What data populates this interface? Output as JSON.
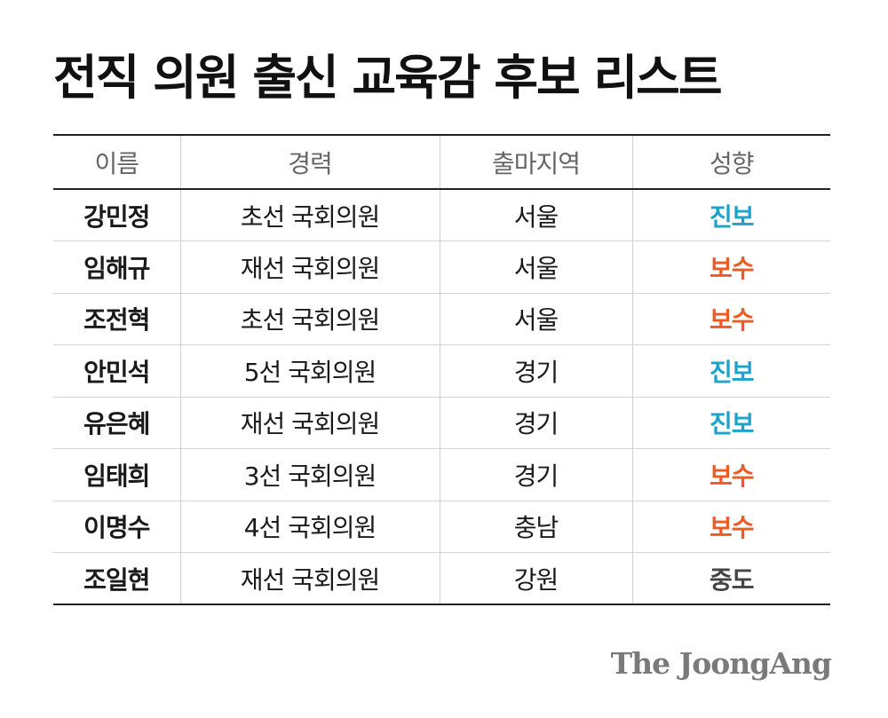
{
  "title": "전직 의원 출신 교육감 후보 리스트",
  "table": {
    "headers": [
      "이름",
      "경력",
      "출마지역",
      "성향"
    ],
    "rows": [
      {
        "name": "강민정",
        "career": "초선 국회의원",
        "region": "서울",
        "tendency": "진보"
      },
      {
        "name": "임해규",
        "career": "재선 국회의원",
        "region": "서울",
        "tendency": "보수"
      },
      {
        "name": "조전혁",
        "career": "초선 국회의원",
        "region": "서울",
        "tendency": "보수"
      },
      {
        "name": "안민석",
        "career": "5선 국회의원",
        "region": "경기",
        "tendency": "진보"
      },
      {
        "name": "유은혜",
        "career": "재선 국회의원",
        "region": "경기",
        "tendency": "진보"
      },
      {
        "name": "임태희",
        "career": "3선 국회의원",
        "region": "경기",
        "tendency": "보수"
      },
      {
        "name": "이명수",
        "career": "4선 국회의원",
        "region": "충남",
        "tendency": "보수"
      },
      {
        "name": "조일현",
        "career": "재선 국회의원",
        "region": "강원",
        "tendency": "중도"
      }
    ]
  },
  "tendency_colors": {
    "진보": "#1ba3c9",
    "보수": "#ee5a24",
    "중도": "#444444"
  },
  "brand": "The JoongAng"
}
